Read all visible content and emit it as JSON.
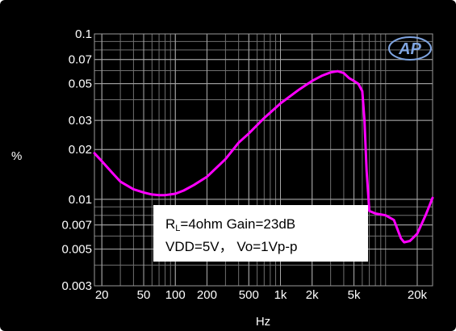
{
  "chart_data": {
    "type": "line",
    "ylabel": "%",
    "xlabel": "Hz",
    "x_scale": "log",
    "y_scale": "log",
    "xlim": [
      17,
      28000
    ],
    "ylim": [
      0.003,
      0.1
    ],
    "x_ticks": [
      {
        "value": 20,
        "label": "20"
      },
      {
        "value": 50,
        "label": "50"
      },
      {
        "value": 100,
        "label": "100"
      },
      {
        "value": 200,
        "label": "200"
      },
      {
        "value": 500,
        "label": "500"
      },
      {
        "value": 1000,
        "label": "1k"
      },
      {
        "value": 2000,
        "label": "2k"
      },
      {
        "value": 5000,
        "label": "5k"
      },
      {
        "value": 20000,
        "label": "20k"
      }
    ],
    "y_ticks": [
      {
        "value": 0.1,
        "label": "0.1"
      },
      {
        "value": 0.07,
        "label": "0.07"
      },
      {
        "value": 0.05,
        "label": "0.05"
      },
      {
        "value": 0.03,
        "label": "0.03"
      },
      {
        "value": 0.02,
        "label": "0.02"
      },
      {
        "value": 0.01,
        "label": "0.01"
      },
      {
        "value": 0.007,
        "label": "0.007"
      },
      {
        "value": 0.005,
        "label": "0.005"
      },
      {
        "value": 0.003,
        "label": "0.003"
      }
    ],
    "grid": true,
    "series": [
      {
        "color": "#ff00ff",
        "points": [
          [
            17,
            0.019
          ],
          [
            20,
            0.017
          ],
          [
            25,
            0.0145
          ],
          [
            30,
            0.0128
          ],
          [
            40,
            0.0115
          ],
          [
            50,
            0.011
          ],
          [
            60,
            0.0107
          ],
          [
            70,
            0.0106
          ],
          [
            80,
            0.0106
          ],
          [
            100,
            0.0108
          ],
          [
            120,
            0.0113
          ],
          [
            150,
            0.0122
          ],
          [
            200,
            0.0137
          ],
          [
            300,
            0.0175
          ],
          [
            400,
            0.022
          ],
          [
            500,
            0.025
          ],
          [
            700,
            0.031
          ],
          [
            1000,
            0.038
          ],
          [
            1500,
            0.046
          ],
          [
            2000,
            0.052
          ],
          [
            2500,
            0.056
          ],
          [
            3000,
            0.0585
          ],
          [
            3500,
            0.0595
          ],
          [
            4000,
            0.058
          ],
          [
            4500,
            0.054
          ],
          [
            5000,
            0.052
          ],
          [
            5500,
            0.05
          ],
          [
            6000,
            0.045
          ],
          [
            6300,
            0.03
          ],
          [
            6600,
            0.015
          ],
          [
            7000,
            0.0085
          ],
          [
            8000,
            0.0082
          ],
          [
            10000,
            0.008
          ],
          [
            12000,
            0.0075
          ],
          [
            14000,
            0.0058
          ],
          [
            15000,
            0.0055
          ],
          [
            17000,
            0.0056
          ],
          [
            20000,
            0.0062
          ],
          [
            24000,
            0.008
          ],
          [
            28000,
            0.0102
          ]
        ]
      }
    ],
    "annotation": {
      "line1_main": "R",
      "line1_sub": "L",
      "line1_rest": "=4ohm Gain=23dB",
      "line2": "VDD=5V， Vo=1Vp-p"
    },
    "logo_text": "AP"
  }
}
